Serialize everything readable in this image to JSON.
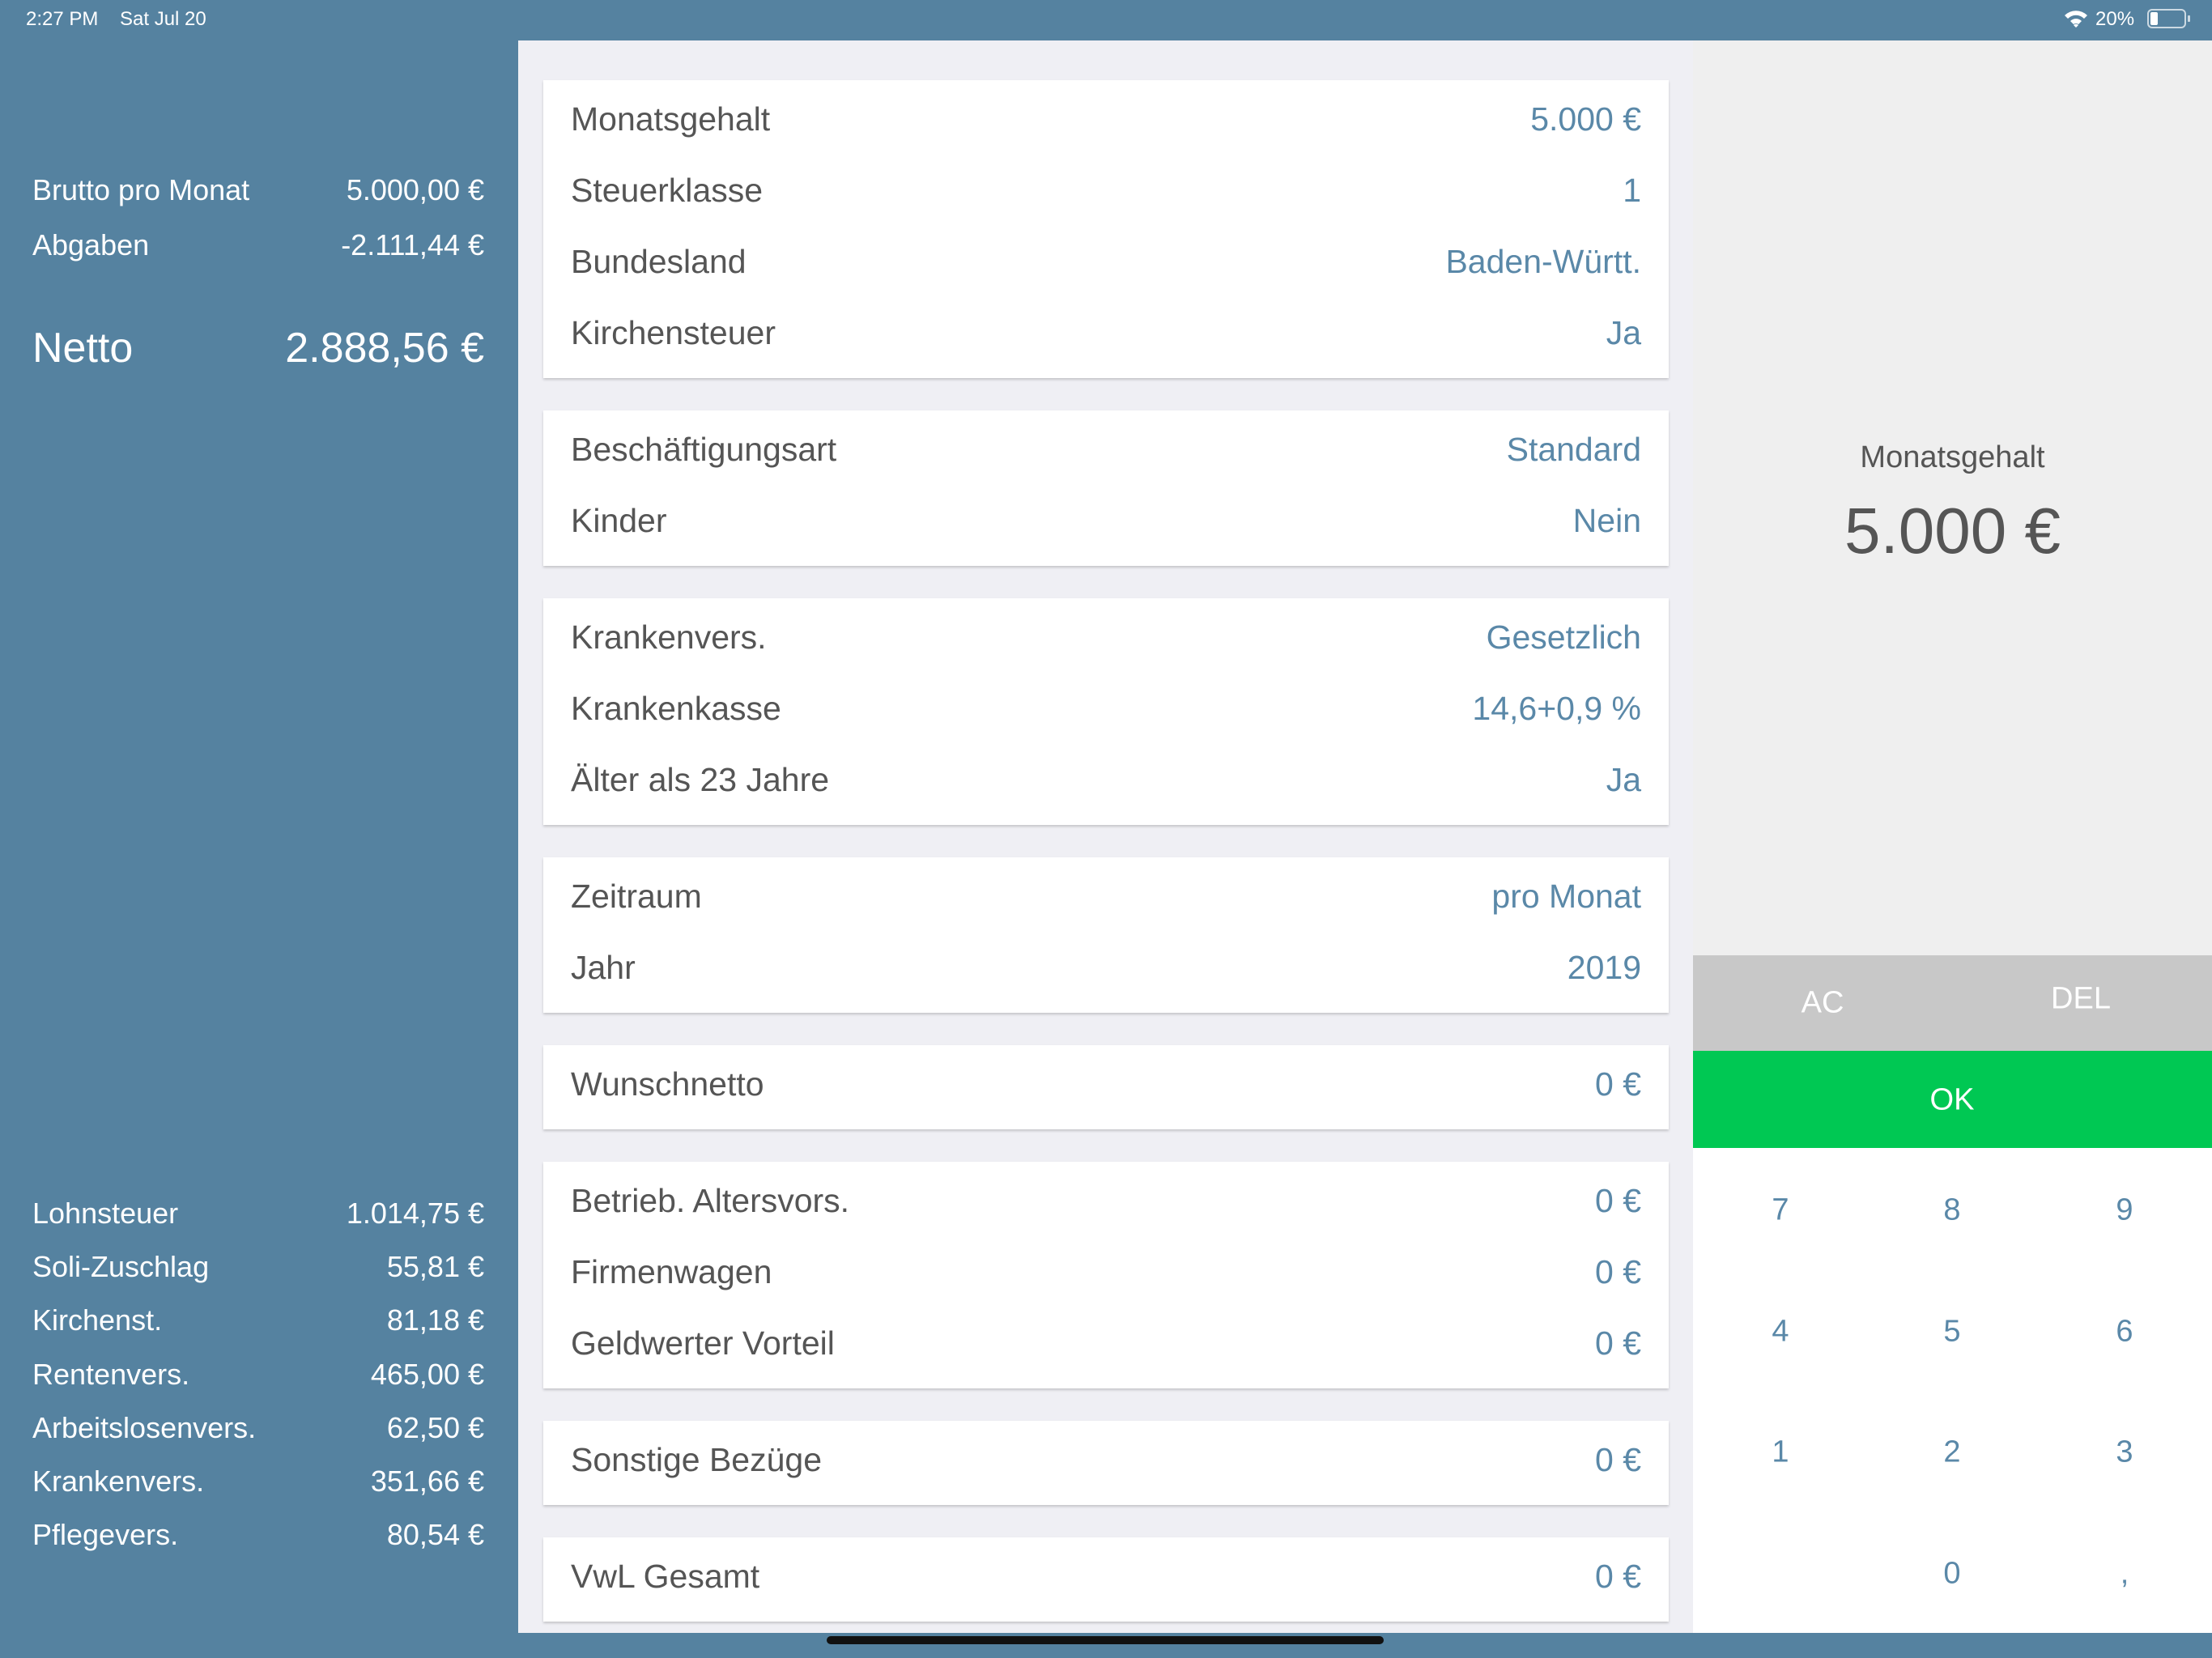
{
  "status_bar": {
    "time": "2:27 PM",
    "date": "Sat Jul 20",
    "battery": "20%"
  },
  "summary": {
    "top": [
      {
        "label": "Brutto pro Monat",
        "value": "5.000,00 €"
      },
      {
        "label": "Abgaben",
        "value": "-2.111,44 €"
      }
    ],
    "netto": {
      "label": "Netto",
      "value": "2.888,56 €"
    },
    "details": [
      {
        "label": "Lohnsteuer",
        "value": "1.014,75 €"
      },
      {
        "label": "Soli-Zuschlag",
        "value": "55,81 €"
      },
      {
        "label": "Kirchenst.",
        "value": "81,18 €"
      },
      {
        "label": "Rentenvers.",
        "value": "465,00 €"
      },
      {
        "label": "Arbeitslosenvers.",
        "value": "62,50 €"
      },
      {
        "label": "Krankenvers.",
        "value": "351,66 €"
      },
      {
        "label": "Pflegevers.",
        "value": "80,54 €"
      }
    ]
  },
  "cards": [
    [
      {
        "label": "Monatsgehalt",
        "value": "5.000 €"
      },
      {
        "label": "Steuerklasse",
        "value": "1"
      },
      {
        "label": "Bundesland",
        "value": "Baden-Württ."
      },
      {
        "label": "Kirchensteuer",
        "value": "Ja"
      }
    ],
    [
      {
        "label": "Beschäftigungsart",
        "value": "Standard"
      },
      {
        "label": "Kinder",
        "value": "Nein"
      }
    ],
    [
      {
        "label": "Krankenvers.",
        "value": "Gesetzlich"
      },
      {
        "label": "Krankenkasse",
        "value": "14,6+0,9 %"
      },
      {
        "label": "Älter als 23 Jahre",
        "value": "Ja"
      }
    ],
    [
      {
        "label": "Zeitraum",
        "value": "pro Monat"
      },
      {
        "label": "Jahr",
        "value": "2019"
      }
    ],
    [
      {
        "label": "Wunschnetto",
        "value": "0 €"
      }
    ],
    [
      {
        "label": "Betrieb. Altersvors.",
        "value": "0 €"
      },
      {
        "label": "Firmenwagen",
        "value": "0 €"
      },
      {
        "label": "Geldwerter Vorteil",
        "value": "0 €"
      }
    ],
    [
      {
        "label": "Sonstige Bezüge",
        "value": "0 €"
      }
    ],
    [
      {
        "label": "VwL Gesamt",
        "value": "0 €"
      }
    ]
  ],
  "keypad": {
    "display_label": "Monatsgehalt",
    "display_value": "5.000 €",
    "clear": "AC",
    "delete": "DEL",
    "ok": "OK",
    "keys": [
      [
        "7",
        "8",
        "9"
      ],
      [
        "4",
        "5",
        "6"
      ],
      [
        "1",
        "2",
        "3"
      ],
      [
        null,
        "0",
        ","
      ]
    ]
  }
}
